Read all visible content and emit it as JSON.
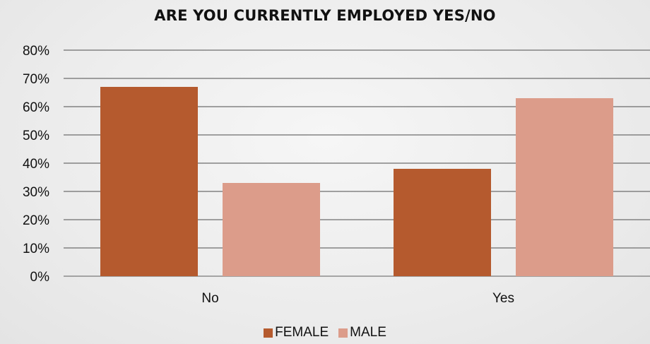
{
  "chart_data": {
    "type": "bar",
    "title": "ARE YOU CURRENTLY EMPLOYED YES/NO",
    "categories": [
      "No",
      "Yes"
    ],
    "series": [
      {
        "name": "FEMALE",
        "values": [
          67,
          38
        ],
        "color": "#b55a2e"
      },
      {
        "name": "MALE",
        "values": [
          33,
          63
        ],
        "color": "#dc9c8a"
      }
    ],
    "ylim": [
      0,
      80
    ],
    "yticks": [
      "0%",
      "10%",
      "20%",
      "30%",
      "40%",
      "50%",
      "60%",
      "70%",
      "80%"
    ],
    "unit": "%",
    "grid": true,
    "legend_position": "bottom"
  }
}
